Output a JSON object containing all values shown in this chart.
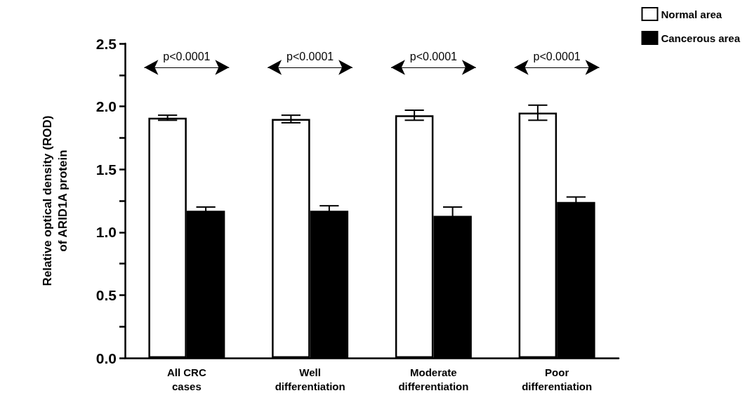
{
  "chart_data": {
    "type": "bar",
    "ylabel": "Relative optical density (ROD)\nof ARID1A protein",
    "categories": [
      "All CRC\ncases",
      "Well\ndifferentiation",
      "Moderate\ndifferentiation",
      "Poor\ndifferentiation"
    ],
    "series": [
      {
        "name": "Normal area",
        "color": "#ffffff",
        "values": [
          1.91,
          1.9,
          1.93,
          1.95
        ],
        "errors": [
          0.02,
          0.03,
          0.04,
          0.06
        ]
      },
      {
        "name": "Cancerous area",
        "color": "#000000",
        "values": [
          1.17,
          1.17,
          1.13,
          1.24
        ],
        "errors": [
          0.03,
          0.04,
          0.07,
          0.04
        ]
      }
    ],
    "ylim": [
      0,
      2.5
    ],
    "yticks": [
      {
        "value": 0,
        "label": "0.0"
      },
      {
        "value": 0.25,
        "label": null
      },
      0.5,
      {
        "value": 0.75,
        "label": null
      },
      {
        "value": 1,
        "label": "1.0"
      },
      {
        "value": 1.25,
        "label": null
      },
      1.5,
      {
        "value": 1.75,
        "label": null
      },
      {
        "value": 2,
        "label": "2.0"
      },
      {
        "value": 2.25,
        "label": null
      },
      2.5
    ],
    "annotations": [
      "p<0.0001",
      "p<0.0001",
      "p<0.0001",
      "p<0.0001"
    ],
    "grid": false,
    "legend": "top right"
  }
}
